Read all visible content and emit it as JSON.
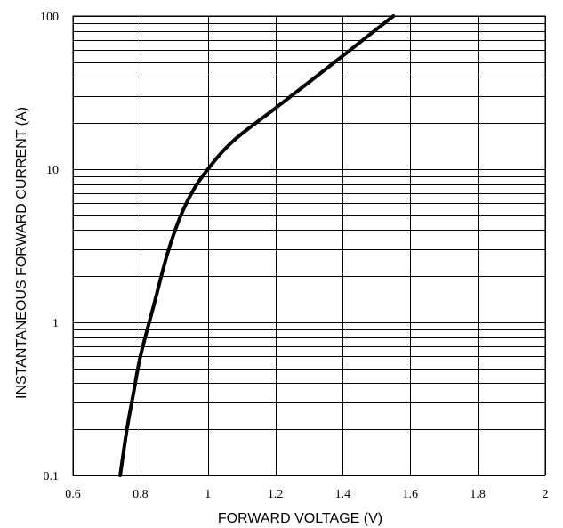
{
  "chart_data": {
    "type": "line",
    "title": "",
    "xlabel": "FORWARD VOLTAGE (V)",
    "ylabel": "INSTANTANEOUS FORWARD CURRENT (A)",
    "x_scale": "linear",
    "y_scale": "log",
    "xlim": [
      0.6,
      2
    ],
    "ylim": [
      0.1,
      100
    ],
    "grid": true,
    "x_ticks": [
      0.6,
      0.8,
      1,
      1.2,
      1.4,
      1.6,
      1.8,
      2
    ],
    "x_tick_labels": [
      "0.6",
      "0.8",
      "1",
      "1.2",
      "1.4",
      "1.6",
      "1.8",
      "2"
    ],
    "y_ticks": [
      0.1,
      1,
      10,
      100
    ],
    "y_tick_labels": [
      "0.1",
      "1",
      "10",
      "100"
    ],
    "series": [
      {
        "x": [
          0.74,
          0.76,
          0.78,
          0.8,
          0.84,
          0.88,
          0.92,
          0.96,
          1.0,
          1.05,
          1.1,
          1.2,
          1.3,
          1.4,
          1.5,
          1.55
        ],
        "y": [
          0.1,
          0.2,
          0.35,
          0.6,
          1.3,
          2.8,
          5.0,
          7.5,
          10.0,
          13.5,
          17.0,
          25.0,
          37.0,
          55.0,
          82.0,
          100.0
        ],
        "color": "#000000"
      }
    ]
  }
}
